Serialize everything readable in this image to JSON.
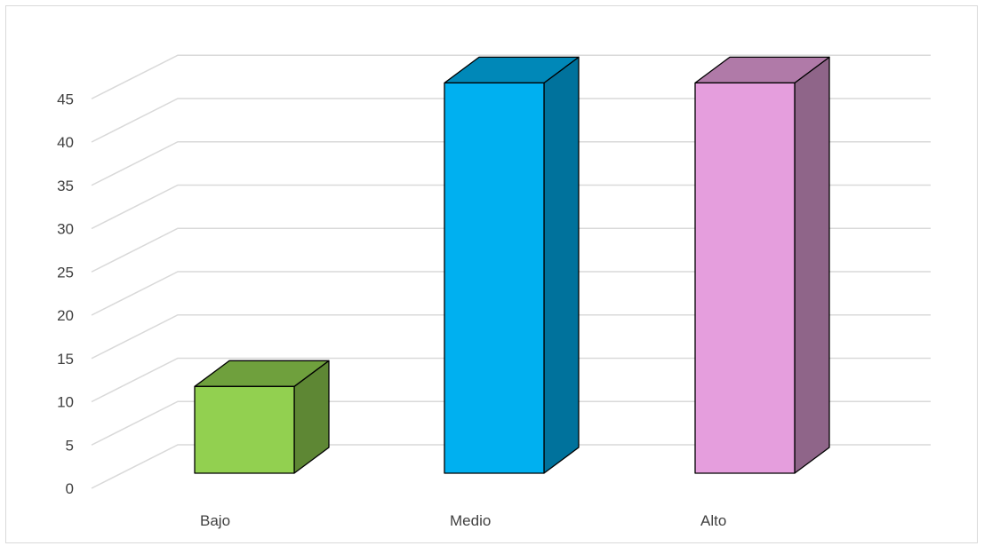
{
  "chart_data": {
    "type": "bar",
    "style": "3d-column",
    "categories": [
      "Bajo",
      "Medio",
      "Alto"
    ],
    "values": [
      10,
      45,
      45
    ],
    "ylim": [
      0,
      45
    ],
    "yticks": [
      0,
      5,
      10,
      15,
      20,
      25,
      30,
      35,
      40,
      45
    ],
    "grid": true,
    "legend": "none",
    "colors": {
      "Bajo": {
        "front": "#92d050",
        "side": "#5e8734",
        "top": "#6fa03d"
      },
      "Medio": {
        "front": "#00b0f0",
        "side": "#00729c",
        "top": "#0088b8"
      },
      "Alto": {
        "front": "#e59edd",
        "side": "#8f6589",
        "top": "#b07aa8"
      }
    },
    "gridline_color": "#d9d9d9",
    "label_color": "#404040"
  }
}
